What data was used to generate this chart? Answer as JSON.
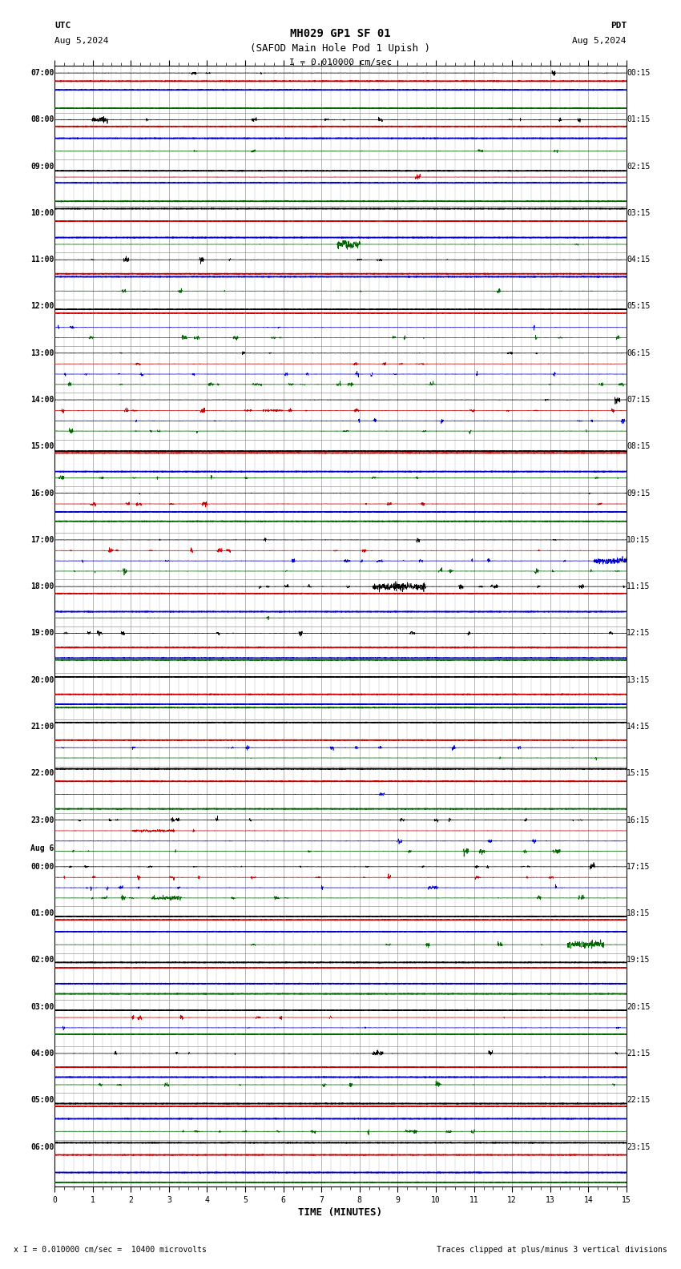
{
  "title_line1": "MH029 GP1 SF 01",
  "title_line2": "(SAFOD Main Hole Pod 1 Upish )",
  "scale_text": "I = 0.010000 cm/sec",
  "utc_label": "UTC",
  "utc_date": "Aug 5,2024",
  "pdt_label": "PDT",
  "pdt_date": "Aug 5,2024",
  "xlabel": "TIME (MINUTES)",
  "footer_left": "x I = 0.010000 cm/sec =  10400 microvolts",
  "footer_right": "Traces clipped at plus/minus 3 vertical divisions",
  "left_times": [
    "07:00",
    "08:00",
    "09:00",
    "10:00",
    "11:00",
    "12:00",
    "13:00",
    "14:00",
    "15:00",
    "16:00",
    "17:00",
    "18:00",
    "19:00",
    "20:00",
    "21:00",
    "22:00",
    "23:00",
    "00:00",
    "01:00",
    "02:00",
    "03:00",
    "04:00",
    "05:00",
    "06:00"
  ],
  "right_times": [
    "00:15",
    "01:15",
    "02:15",
    "03:15",
    "04:15",
    "05:15",
    "06:15",
    "07:15",
    "08:15",
    "09:15",
    "10:15",
    "11:15",
    "12:15",
    "13:15",
    "14:15",
    "15:15",
    "16:15",
    "17:15",
    "18:15",
    "19:15",
    "20:15",
    "21:15",
    "22:15",
    "23:15"
  ],
  "n_rows": 24,
  "n_minutes": 15,
  "bg_color": "#ffffff",
  "grid_color": "#999999",
  "ch_colors": [
    "#000000",
    "#cc0000",
    "#0000cc",
    "#006600"
  ],
  "fig_width": 8.5,
  "fig_height": 15.84,
  "midnight_row": 17
}
